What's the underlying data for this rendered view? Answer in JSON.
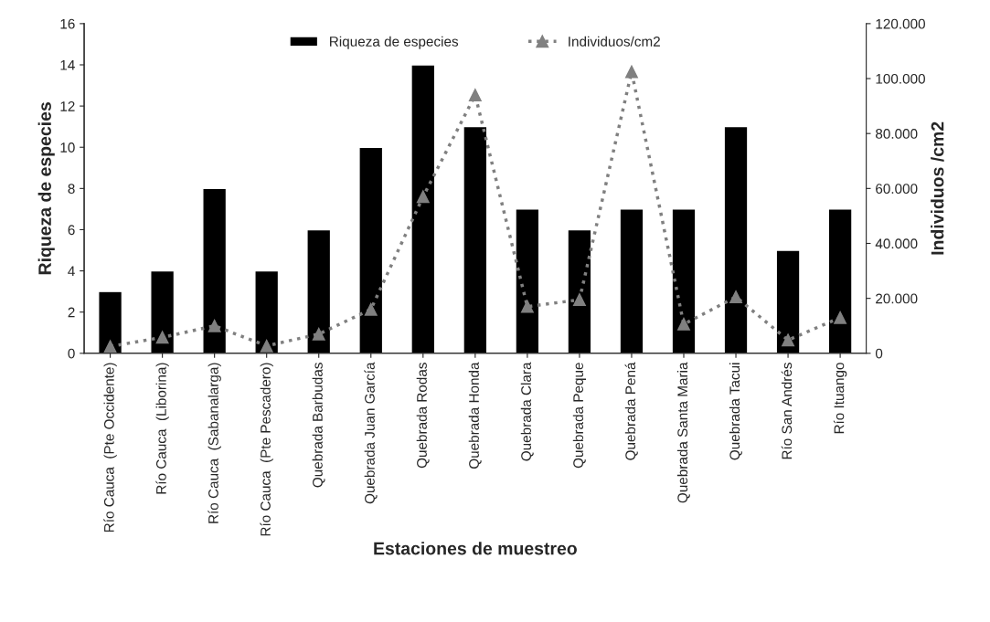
{
  "chart_data": {
    "type": "bar",
    "xlabel": "Estaciones de muestreo",
    "ylabel": "Riqueza de especies",
    "y2label": "Individuos /cm2",
    "categories": [
      "Río Cauca  (Pte Occidente)",
      "Río Cauca  (Liborina)",
      "Río Cauca  (Sabanalarga)",
      "Río Cauca  (Pte Pescadero)",
      "Quebrada Barbudas",
      "Quebrada Juan García",
      "Quebrada Rodas",
      "Quebrada Honda",
      "Quebrada Clara",
      "Quebrada Peque",
      "Quebrada Pená",
      "Quebrada Santa Maria",
      "Quebrada Tacui",
      "Río San Andrés",
      "Río Ituango"
    ],
    "series": [
      {
        "name": "Riqueza de especies",
        "color": "#000000",
        "values": [
          3,
          4,
          8,
          4,
          6,
          10,
          14,
          11,
          7,
          6,
          7,
          7,
          11,
          5,
          7
        ]
      },
      {
        "name": "Individuos/cm2",
        "type": "line",
        "axis": "y2",
        "color": "#808080",
        "marker": "triangle",
        "line_style": "dotted",
        "values": [
          2500,
          5800,
          10000,
          2700,
          7000,
          16000,
          57000,
          94000,
          17000,
          19500,
          102500,
          10600,
          20500,
          4800,
          13000
        ]
      }
    ],
    "ylim": [
      0,
      16
    ],
    "yticks": [
      0,
      2,
      4,
      6,
      8,
      10,
      12,
      14,
      16
    ],
    "y2lim": [
      0,
      120000
    ],
    "y2ticks": [
      0,
      {
        "value": 20000,
        "label": "20.000"
      },
      {
        "value": 40000,
        "label": "40.000"
      },
      {
        "value": 60000,
        "label": "60.000"
      },
      {
        "value": 80000,
        "label": "80.000"
      },
      {
        "value": 100000,
        "label": "100.000"
      },
      {
        "value": 120000,
        "label": "120.000"
      }
    ],
    "legend": "top",
    "grid": false
  }
}
